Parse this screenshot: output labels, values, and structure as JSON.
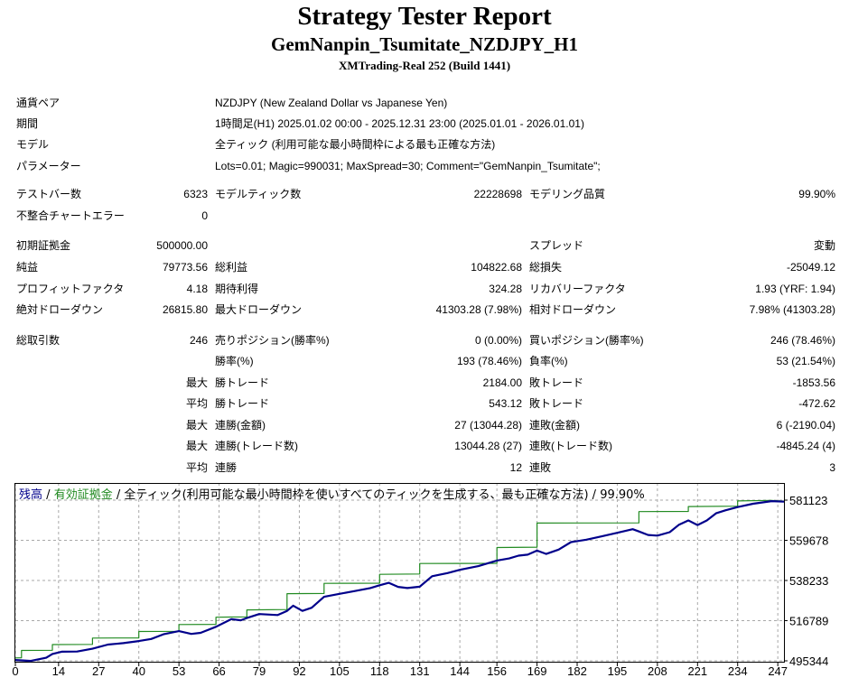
{
  "header": {
    "title": "Strategy Tester Report",
    "subtitle": "GemNanpin_Tsumitate_NZDJPY_H1",
    "server": "XMTrading-Real 252 (Build 1441)"
  },
  "info": {
    "symbol_label": "通貨ペア",
    "symbol_value": "NZDJPY (New Zealand Dollar vs Japanese Yen)",
    "period_label": "期間",
    "period_value": "1時間足(H1) 2025.01.02 00:00 - 2025.12.31 23:00 (2025.01.01 - 2026.01.01)",
    "model_label": "モデル",
    "model_value": "全ティック (利用可能な最小時間枠による最も正確な方法)",
    "params_label": "パラメーター",
    "params_value": "Lots=0.01; Magic=990031; MaxSpread=30; Comment=\"GemNanpin_Tsumitate\";"
  },
  "stats": {
    "bars_label": "テストバー数",
    "bars_value": "6323",
    "ticks_label": "モデルティック数",
    "ticks_value": "22228698",
    "quality_label": "モデリング品質",
    "quality_value": "99.90%",
    "mismatch_label": "不整合チャートエラー",
    "mismatch_value": "0",
    "deposit_label": "初期証拠金",
    "deposit_value": "500000.00",
    "spread_label": "スプレッド",
    "spread_value": "変動",
    "net_label": "純益",
    "net_value": "79773.56",
    "gross_profit_label": "総利益",
    "gross_profit_value": "104822.68",
    "gross_loss_label": "総損失",
    "gross_loss_value": "-25049.12",
    "pf_label": "プロフィットファクタ",
    "pf_value": "4.18",
    "expected_label": "期待利得",
    "expected_value": "324.28",
    "recovery_label": "リカバリーファクタ",
    "recovery_value": "1.93 (YRF: 1.94)",
    "abs_dd_label": "絶対ドローダウン",
    "abs_dd_value": "26815.80",
    "max_dd_label": "最大ドローダウン",
    "max_dd_value": "41303.28 (7.98%)",
    "rel_dd_label": "相対ドローダウン",
    "rel_dd_value": "7.98% (41303.28)"
  },
  "trades": {
    "total_label": "総取引数",
    "total_value": "246",
    "short_label": "売りポジション(勝率%)",
    "short_value": "0 (0.00%)",
    "long_label": "買いポジション(勝率%)",
    "long_value": "246 (78.46%)",
    "win_label": "勝率(%)",
    "win_value": "193 (78.46%)",
    "loss_label": "負率(%)",
    "loss_value": "53 (21.54%)",
    "max_word": "最大",
    "avg_word": "平均",
    "lw_label": "勝トレード",
    "lw_value": "2184.00",
    "ll_label": "敗トレード",
    "ll_value": "-1853.56",
    "aw_label": "勝トレード",
    "aw_value": "543.12",
    "al_label": "敗トレード",
    "al_value": "-472.62",
    "mcw_label": "連勝(金額)",
    "mcw_value": "27 (13044.28)",
    "mcl_label": "連敗(金額)",
    "mcl_value": "6 (-2190.04)",
    "mcp_label": "連勝(トレード数)",
    "mcp_value": "13044.28 (27)",
    "mcpl_label": "連敗(トレード数)",
    "mcpl_value": "-4845.24 (4)",
    "acw_label": "連勝",
    "acw_value": "12",
    "acl_label": "連敗",
    "acl_value": "3"
  },
  "chart_data": {
    "type": "line",
    "legend": {
      "balance": "残高",
      "equity": "有効証拠金",
      "desc": "全ティック(利用可能な最小時間枠を使いすべてのティックを生成する、最も正確な方法)",
      "quality": "99.90%",
      "sep": "/"
    },
    "xlim": [
      0,
      249
    ],
    "ylim": [
      495344,
      581123
    ],
    "x_ticks": [
      "0",
      "14",
      "27",
      "40",
      "53",
      "66",
      "79",
      "92",
      "105",
      "118",
      "131",
      "144",
      "156",
      "169",
      "182",
      "195",
      "208",
      "221",
      "234",
      "247"
    ],
    "y_ticks": [
      "581123",
      "559678",
      "538233",
      "516789",
      "495344"
    ],
    "colors": {
      "balance": "#00008b",
      "equity": "#228b22",
      "grid": "#a9a9a9"
    },
    "series": [
      {
        "name": "残高",
        "x": [
          0,
          5,
          10,
          12,
          15,
          20,
          25,
          30,
          35,
          40,
          44,
          48,
          53,
          57,
          60,
          65,
          70,
          73,
          75,
          79,
          85,
          88,
          90,
          93,
          96,
          100,
          105,
          110,
          115,
          118,
          121,
          124,
          127,
          131,
          135,
          140,
          144,
          150,
          156,
          160,
          163,
          166,
          169,
          172,
          176,
          180,
          185,
          190,
          195,
          200,
          202,
          205,
          208,
          212,
          215,
          218,
          221,
          224,
          227,
          230,
          234,
          239,
          245,
          249
        ],
        "y": [
          495800,
          495300,
          497000,
          499000,
          500200,
          500300,
          501800,
          504000,
          504800,
          505900,
          507000,
          509500,
          511200,
          509700,
          510300,
          513500,
          517600,
          517000,
          518200,
          520300,
          519800,
          522000,
          524800,
          522000,
          523700,
          529500,
          531100,
          532600,
          534200,
          535700,
          537000,
          534800,
          534200,
          534900,
          540500,
          542200,
          543900,
          545900,
          548900,
          550000,
          551500,
          552000,
          554200,
          552400,
          554700,
          558700,
          560000,
          561800,
          563700,
          565600,
          564400,
          562500,
          562200,
          564000,
          568000,
          570300,
          567800,
          570300,
          574100,
          575700,
          577400,
          579200,
          580600,
          580300
        ]
      },
      {
        "name": "有効証拠金",
        "x": [
          0,
          2,
          2,
          12,
          12,
          25,
          25,
          40,
          40,
          53,
          53,
          65,
          65,
          75,
          75,
          88,
          88,
          100,
          100,
          118,
          118,
          131,
          131,
          156,
          156,
          169,
          169,
          202,
          202,
          218,
          218,
          234,
          234,
          245,
          249
        ],
        "y": [
          496900,
          497000,
          500900,
          501000,
          504000,
          504100,
          507500,
          507600,
          511000,
          511100,
          514700,
          514800,
          518600,
          518800,
          522500,
          522700,
          531200,
          531300,
          536700,
          536800,
          541500,
          541700,
          547300,
          547400,
          555800,
          556000,
          568900,
          569000,
          575000,
          575100,
          577700,
          577900,
          580700,
          581000,
          580600
        ]
      }
    ]
  }
}
